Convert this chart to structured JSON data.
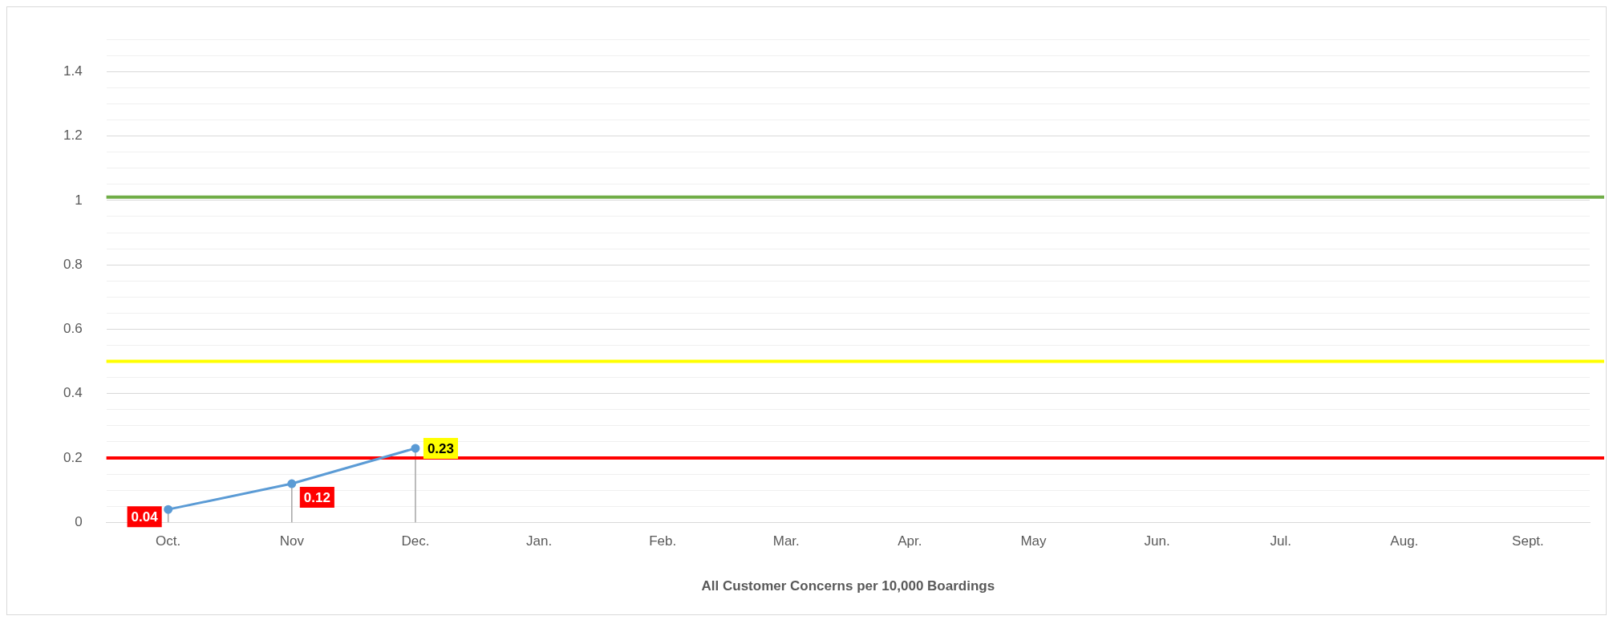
{
  "chart_data": {
    "type": "line",
    "xlabel": "All Customer Concerns per 10,000 Boardings",
    "categories": [
      "Oct.",
      "Nov",
      "Dec.",
      "Jan.",
      "Feb.",
      "Mar.",
      "Apr.",
      "May",
      "Jun.",
      "Jul.",
      "Aug.",
      "Sept."
    ],
    "series": [
      {
        "color": "#5b9bd5",
        "values": [
          0.04,
          0.12,
          0.23,
          null,
          null,
          null,
          null,
          null,
          null,
          null,
          null,
          null
        ]
      }
    ],
    "data_labels": true,
    "marker": "circle",
    "line_style": "solid",
    "legend": false,
    "grid": "y",
    "ylim": [
      0,
      1.5
    ],
    "yticks": [
      0,
      {
        "value": 0.05,
        "label": null
      },
      {
        "value": 0.1,
        "label": null
      },
      {
        "value": 0.15,
        "label": null
      },
      0.2,
      {
        "value": 0.25,
        "label": null
      },
      {
        "value": 0.3,
        "label": null
      },
      {
        "value": 0.35,
        "label": null
      },
      0.4,
      {
        "value": 0.45,
        "label": null
      },
      {
        "value": 0.5,
        "label": null
      },
      {
        "value": 0.55,
        "label": null
      },
      0.6,
      {
        "value": 0.65,
        "label": null
      },
      {
        "value": 0.7,
        "label": null
      },
      {
        "value": 0.75,
        "label": null
      },
      0.8,
      {
        "value": 0.85,
        "label": null
      },
      {
        "value": 0.9,
        "label": null
      },
      {
        "value": 0.95,
        "label": null
      },
      1,
      {
        "value": 1.05,
        "label": null
      },
      {
        "value": 1.1,
        "label": null
      },
      {
        "value": 1.15,
        "label": null
      },
      1.2,
      {
        "value": 1.25,
        "label": null
      },
      {
        "value": 1.3,
        "label": null
      },
      {
        "value": 1.35,
        "label": null
      },
      1.4,
      {
        "value": 1.45,
        "label": null
      },
      {
        "value": 1.5,
        "label": null
      }
    ],
    "ref_lines": [
      {
        "axis": "y",
        "value": 1.01,
        "color": "#70ad47"
      },
      {
        "axis": "y",
        "value": 0.5,
        "color": "#ffff00"
      },
      {
        "axis": "y",
        "value": 0.2,
        "color": "#ff0000"
      }
    ]
  }
}
